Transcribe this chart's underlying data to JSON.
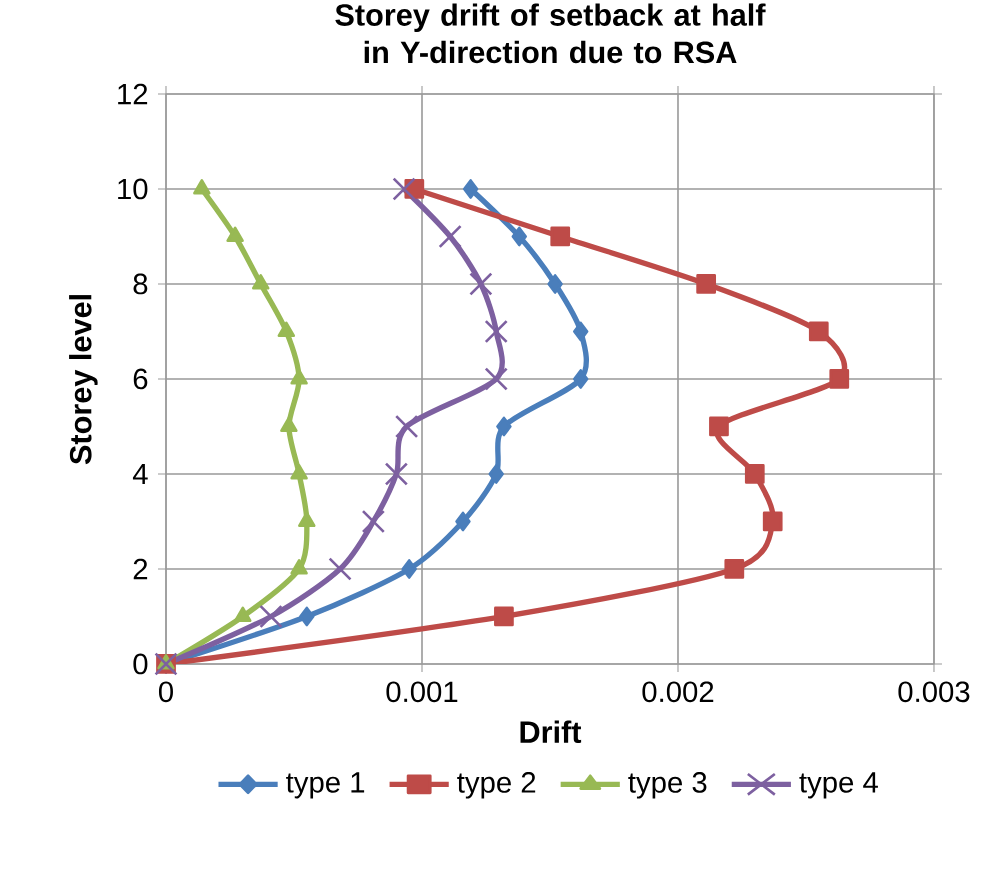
{
  "chart_data": {
    "type": "line",
    "title": "Storey drift of setback at half in Y-direction due to RSA",
    "xlabel": "Drift",
    "ylabel": "Storey level",
    "xlim": [
      0,
      0.003
    ],
    "xticks": [
      0,
      0.001,
      0.002,
      0.003
    ],
    "ylim": [
      0,
      12
    ],
    "yticks": [
      0,
      2,
      4,
      6,
      8,
      10,
      12
    ],
    "grid": true,
    "legend": "bottom",
    "line_style": "solid",
    "series": [
      {
        "name": "type 1",
        "color": "#4a7ebb",
        "marker": "diamond",
        "x": [
          0,
          0.00055,
          0.00095,
          0.00116,
          0.00129,
          0.00132,
          0.00162,
          0.00162,
          0.00152,
          0.00138,
          0.00119
        ],
        "values": [
          0,
          1,
          2,
          3,
          4,
          5,
          6,
          7,
          8,
          9,
          10
        ]
      },
      {
        "name": "type 2",
        "color": "#be4b48",
        "marker": "square",
        "x": [
          0,
          0.00132,
          0.00222,
          0.00237,
          0.0023,
          0.00216,
          0.00263,
          0.00255,
          0.00211,
          0.00154,
          0.00097
        ],
        "values": [
          0,
          1,
          2,
          3,
          4,
          5,
          6,
          7,
          8,
          9,
          10
        ]
      },
      {
        "name": "type 3",
        "color": "#98b954",
        "marker": "triangle",
        "x": [
          0,
          0.0003,
          0.00052,
          0.00055,
          0.00052,
          0.00048,
          0.00052,
          0.00047,
          0.00037,
          0.00027,
          0.00014
        ],
        "values": [
          0,
          1,
          2,
          3,
          4,
          5,
          6,
          7,
          8,
          9,
          10
        ]
      },
      {
        "name": "type 4",
        "color": "#7d60a0",
        "marker": "cross",
        "x": [
          0,
          0.00041,
          0.00068,
          0.00081,
          0.0009,
          0.00094,
          0.00129,
          0.00129,
          0.00123,
          0.00111,
          0.00093
        ],
        "values": [
          0,
          1,
          2,
          3,
          4,
          5,
          6,
          7,
          8,
          9,
          10
        ]
      }
    ]
  }
}
